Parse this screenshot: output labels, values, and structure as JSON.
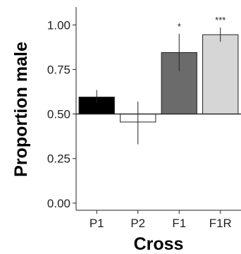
{
  "chart_data": {
    "type": "bar",
    "xlabel": "Cross",
    "ylabel": "Proportion male",
    "categories": [
      "P1",
      "P2",
      "F1",
      "F1R"
    ],
    "values": [
      0.595,
      0.455,
      0.845,
      0.945
    ],
    "error_low": [
      0.56,
      0.33,
      0.74,
      0.905
    ],
    "error_high": [
      0.635,
      0.57,
      0.95,
      0.985
    ],
    "significance": [
      "",
      "",
      "*",
      "***"
    ],
    "bar_colors": [
      "#000000",
      "#ffffff",
      "#6b6b6b",
      "#d6d6d6"
    ],
    "baseline": 0.5,
    "ylim": [
      -0.04,
      1.1
    ],
    "yticks": [
      0.0,
      0.25,
      0.5,
      0.75,
      1.0
    ],
    "ytick_labels": [
      "0.00",
      "0.25",
      "0.50",
      "0.75",
      "1.00"
    ],
    "grid": false
  }
}
